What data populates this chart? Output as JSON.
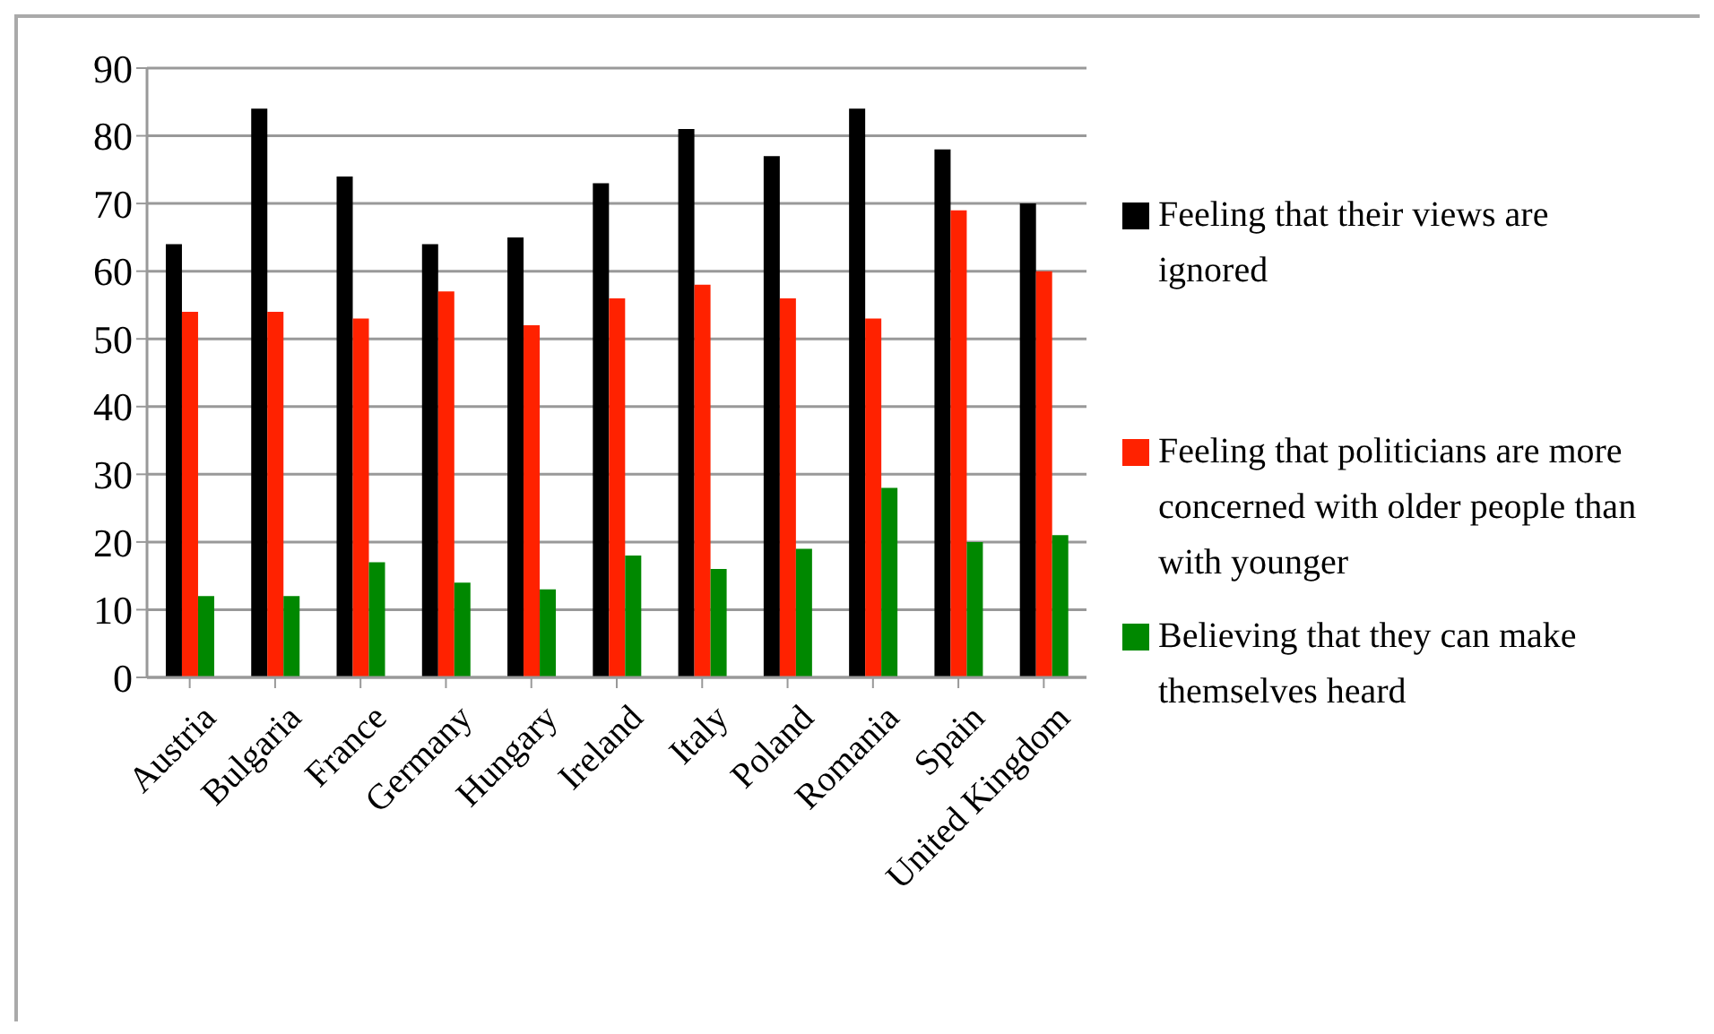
{
  "chart_data": {
    "type": "bar",
    "categories": [
      "Austria",
      "Bulgaria",
      "France",
      "Germany",
      "Hungary",
      "Ireland",
      "Italy",
      "Poland",
      "Romania",
      "Spain",
      "United Kingdom"
    ],
    "series": [
      {
        "name": "Feeling that their views are ignored",
        "color": "#000000",
        "values": [
          64,
          84,
          74,
          64,
          65,
          73,
          81,
          77,
          84,
          78,
          70
        ]
      },
      {
        "name": "Feeling that politicians are more concerned with older people than with younger",
        "color": "#ff2200",
        "values": [
          54,
          54,
          53,
          57,
          52,
          56,
          58,
          56,
          53,
          69,
          60
        ]
      },
      {
        "name": "Believing that they can make themselves heard",
        "color": "#008800",
        "values": [
          12,
          12,
          17,
          14,
          13,
          18,
          16,
          19,
          28,
          20,
          21
        ]
      }
    ],
    "ylim": [
      0,
      90
    ],
    "yticks": [
      0,
      10,
      20,
      30,
      40,
      50,
      60,
      70,
      80,
      90
    ],
    "grid": "y",
    "legend": "right"
  }
}
